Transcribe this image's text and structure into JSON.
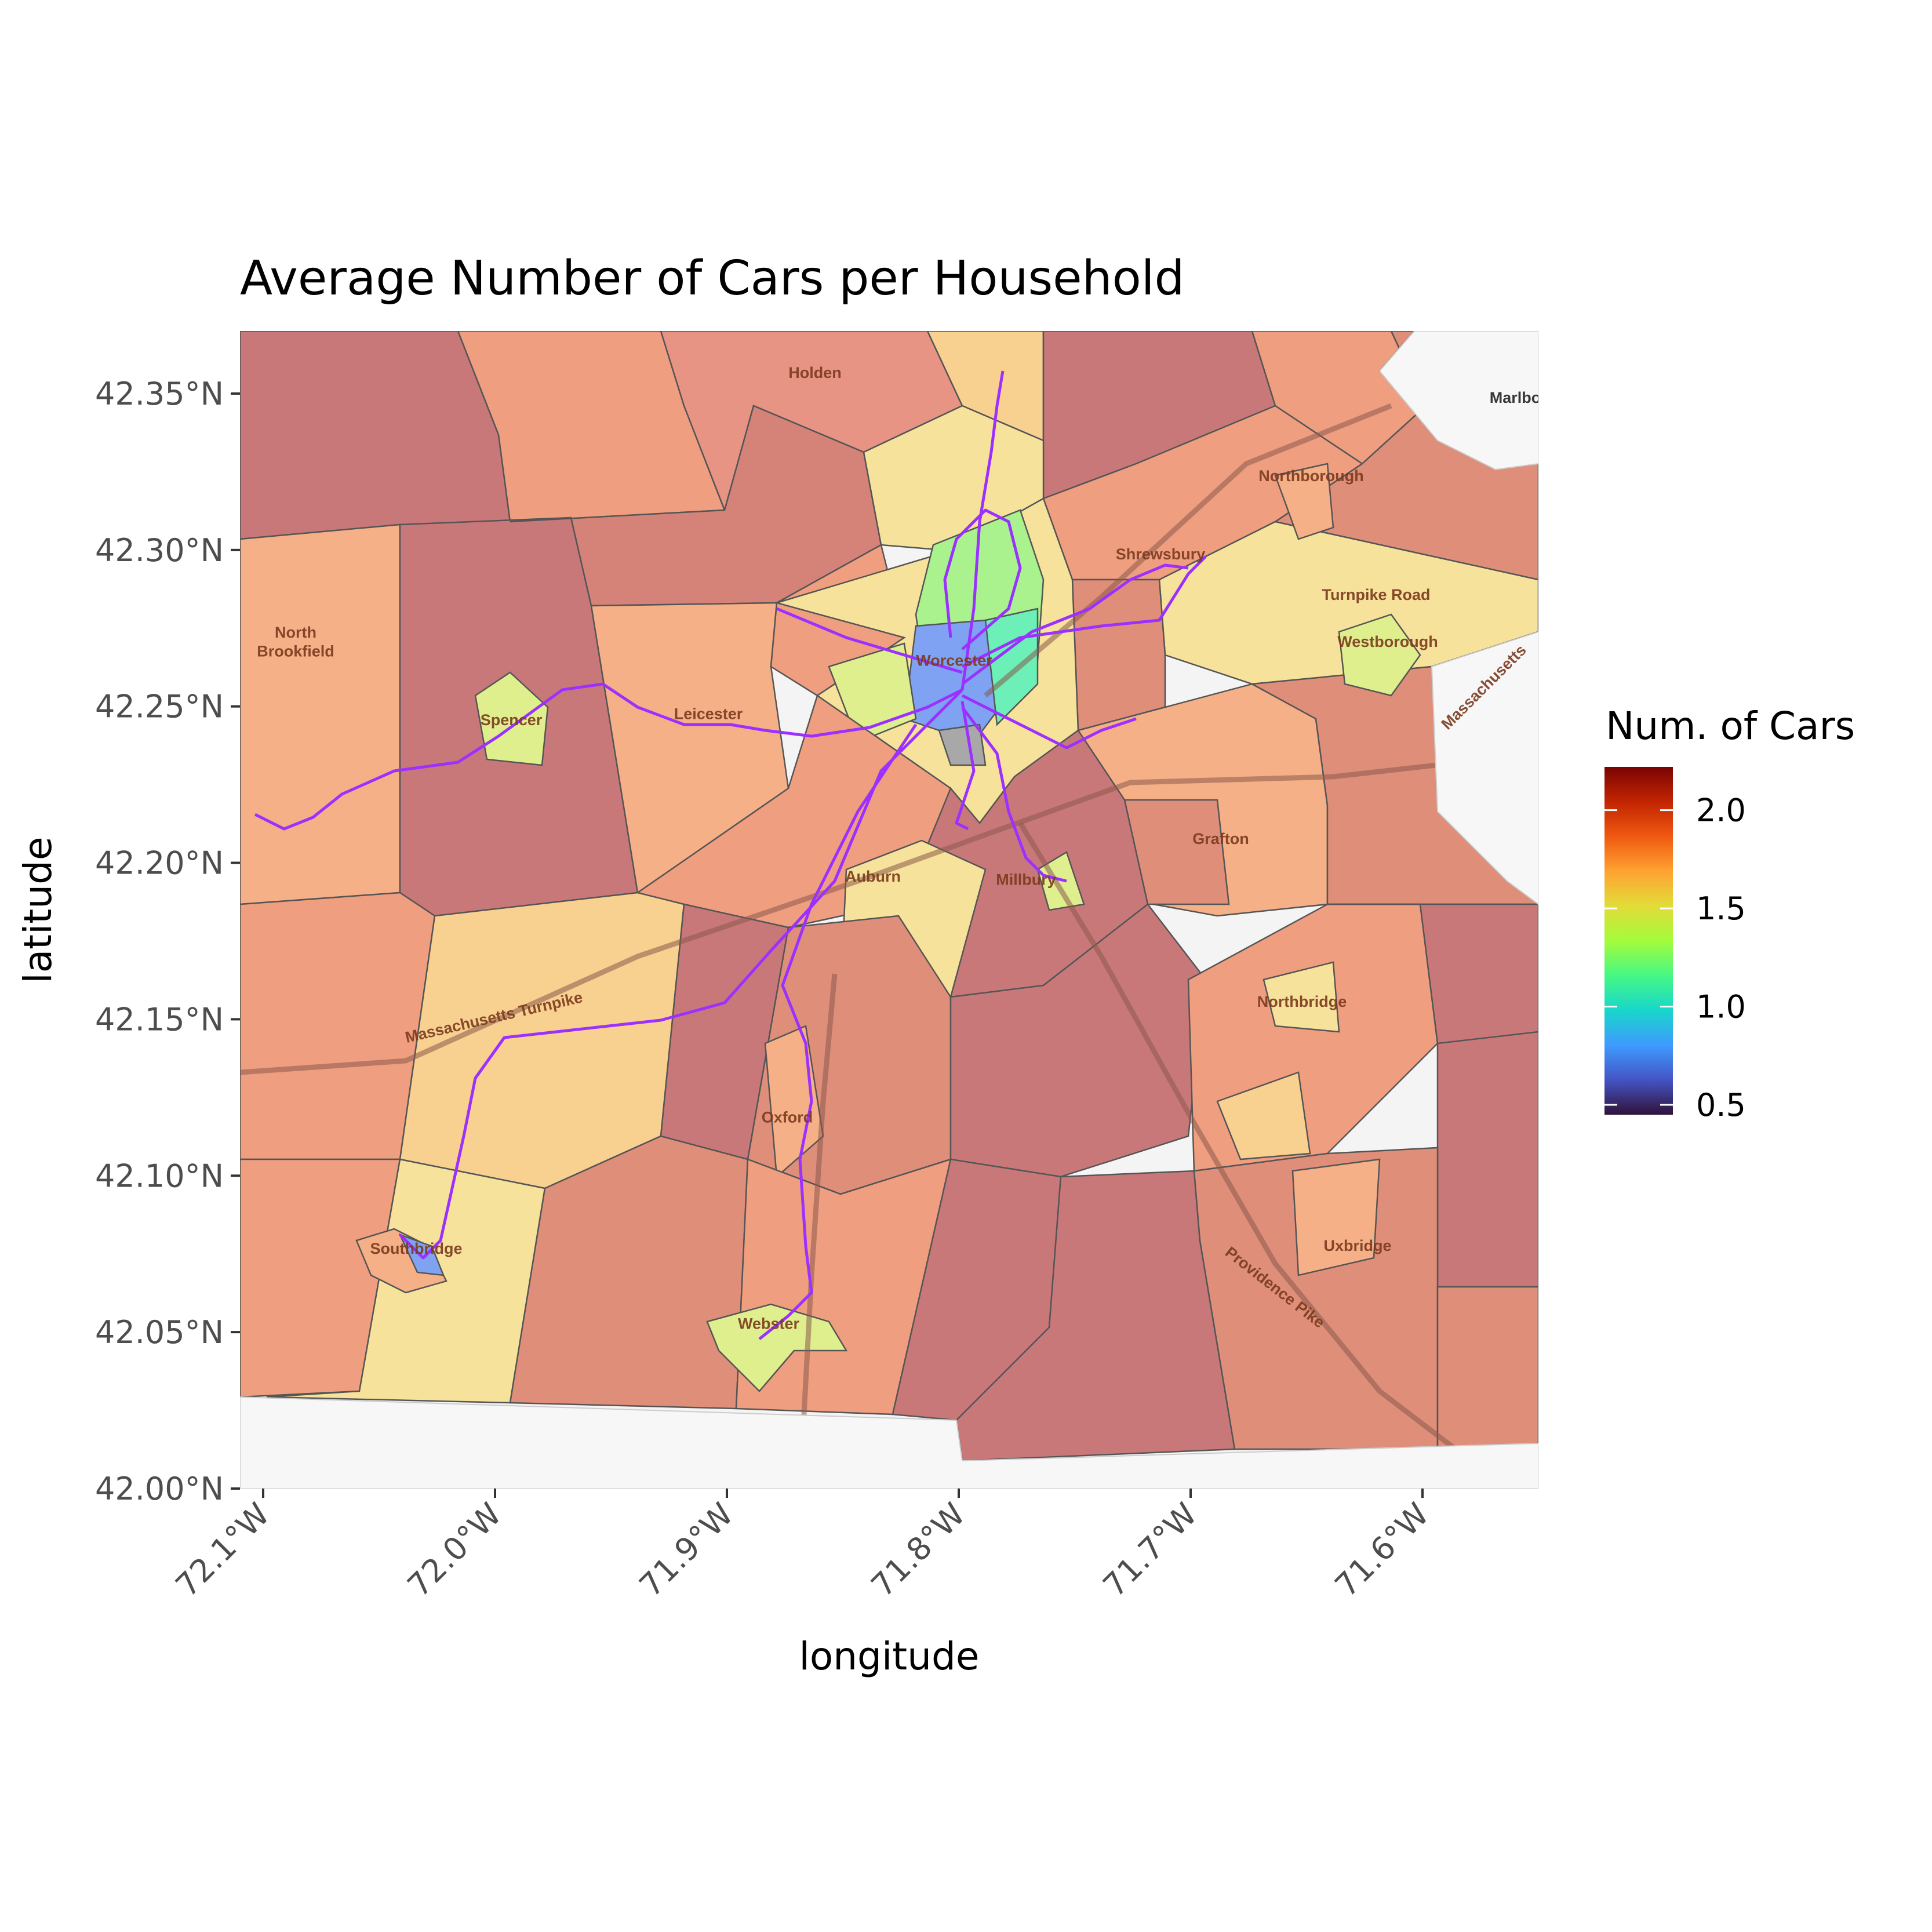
{
  "chart_data": {
    "type": "choropleth-map",
    "title": "Average Number of Cars per Household",
    "xlabel": "longitude",
    "ylabel": "latitude",
    "xlim": [
      -72.11,
      -71.55
    ],
    "ylim": [
      42.0,
      42.37
    ],
    "x_ticks": [
      {
        "value": -72.1,
        "label": "72.1°W"
      },
      {
        "value": -72.0,
        "label": "72.0°W"
      },
      {
        "value": -71.9,
        "label": "71.9°W"
      },
      {
        "value": -71.8,
        "label": "71.8°W"
      },
      {
        "value": -71.7,
        "label": "71.7°W"
      },
      {
        "value": -71.6,
        "label": "71.6°W"
      }
    ],
    "y_ticks": [
      {
        "value": 42.0,
        "label": "42.00°N"
      },
      {
        "value": 42.05,
        "label": "42.05°N"
      },
      {
        "value": 42.1,
        "label": "42.10°N"
      },
      {
        "value": 42.15,
        "label": "42.15°N"
      },
      {
        "value": 42.2,
        "label": "42.20°N"
      },
      {
        "value": 42.25,
        "label": "42.25°N"
      },
      {
        "value": 42.3,
        "label": "42.30°N"
      },
      {
        "value": 42.35,
        "label": "42.35°N"
      }
    ],
    "legend": {
      "title": "Num. of Cars",
      "position": "right",
      "min": 0.45,
      "max": 2.22,
      "breaks": [
        {
          "value": 0.5,
          "label": "0.5"
        },
        {
          "value": 1.0,
          "label": "1.0"
        },
        {
          "value": 1.5,
          "label": "1.5"
        },
        {
          "value": 2.0,
          "label": "2.0"
        }
      ],
      "colormap": "turbo"
    },
    "place_labels": [
      {
        "text": "Holden",
        "lon": -71.862,
        "lat": 42.355
      },
      {
        "text": "Northborough",
        "lon": -71.648,
        "lat": 42.322
      },
      {
        "text": "Shrewsbury",
        "lon": -71.713,
        "lat": 42.297
      },
      {
        "text": "Turnpike Road",
        "lon": -71.62,
        "lat": 42.284
      },
      {
        "text": "Westborough",
        "lon": -71.615,
        "lat": 42.269
      },
      {
        "text": "North",
        "lon": -72.086,
        "lat": 42.272
      },
      {
        "text": "Brookfield",
        "lon": -72.086,
        "lat": 42.266
      },
      {
        "text": "Worcester",
        "lon": -71.802,
        "lat": 42.263
      },
      {
        "text": "Spencer",
        "lon": -71.993,
        "lat": 42.244
      },
      {
        "text": "Leicester",
        "lon": -71.908,
        "lat": 42.246
      },
      {
        "text": "Massachusetts",
        "lon": -71.572,
        "lat": 42.255
      },
      {
        "text": "Grafton",
        "lon": -71.687,
        "lat": 42.206
      },
      {
        "text": "Auburn",
        "lon": -71.837,
        "lat": 42.194
      },
      {
        "text": "Millbury",
        "lon": -71.771,
        "lat": 42.193
      },
      {
        "text": "Massachusetts Turnpike",
        "lon": -72.0,
        "lat": 42.149
      },
      {
        "text": "Northbridge",
        "lon": -71.652,
        "lat": 42.154
      },
      {
        "text": "Oxford",
        "lon": -71.874,
        "lat": 42.117
      },
      {
        "text": "Uxbridge",
        "lon": -71.628,
        "lat": 42.076
      },
      {
        "text": "Southbridge",
        "lon": -72.034,
        "lat": 42.075
      },
      {
        "text": "Providence Pike",
        "lon": -71.665,
        "lat": 42.063
      },
      {
        "text": "Webster",
        "lon": -71.882,
        "lat": 42.051
      },
      {
        "text": "Marlbo",
        "lon": -71.56,
        "lat": 42.347
      }
    ],
    "transit_routes": "purple line network radiating from Worcester to Spencer, Southbridge, Webster, Shrewsbury, Holden, Millbury",
    "region_colors": {
      "very_high": "#c9787a",
      "high": "#df8e7a",
      "mid_high": "#ef9e80",
      "mid": "#f5b087",
      "mid_low": "#f8d090",
      "low": "#f6e29a",
      "lower": "#dfef8e",
      "green": "#a9f28e",
      "cyan": "#6cf0b8",
      "blue": "#7fa3f2",
      "route": "#9b30ff"
    }
  }
}
